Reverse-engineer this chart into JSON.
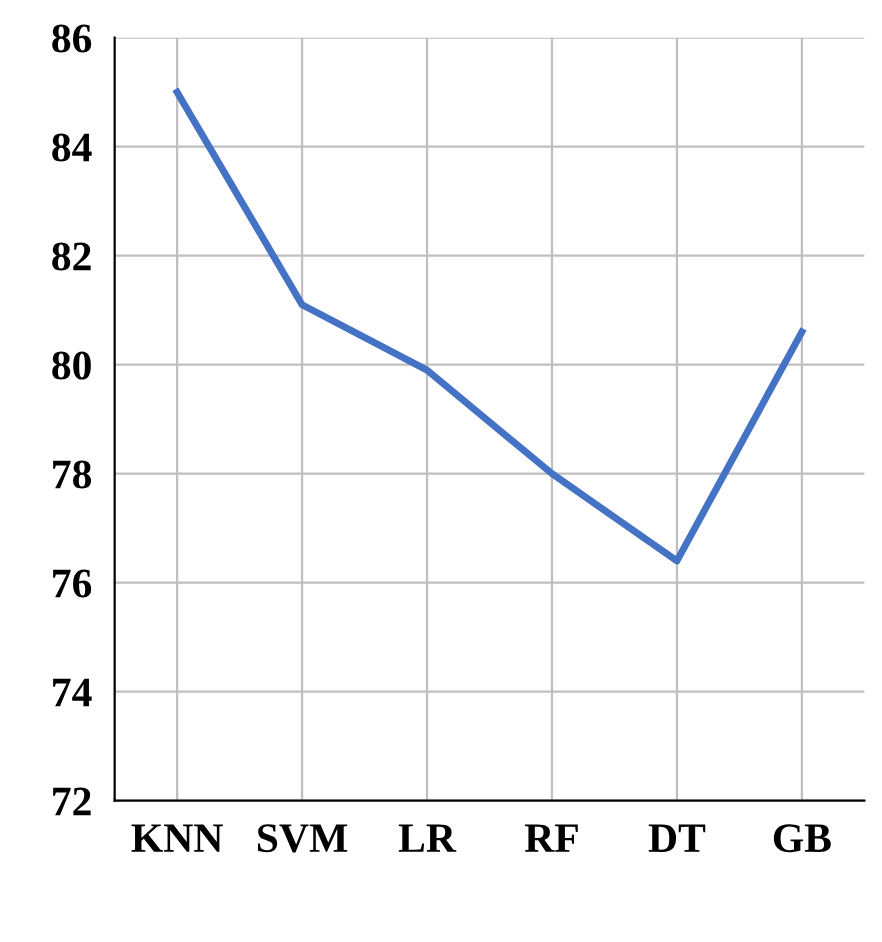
{
  "chart_data": {
    "type": "line",
    "categories": [
      "KNN",
      "SVM",
      "LR",
      "RF",
      "DT",
      "GB"
    ],
    "series": [
      {
        "color": "#4472c4",
        "values": [
          85.0,
          81.1,
          79.9,
          78.0,
          76.4,
          80.6
        ]
      }
    ],
    "ylim": [
      72,
      86
    ],
    "yticks": [
      72,
      74,
      76,
      78,
      80,
      82,
      84,
      86
    ],
    "grid": true
  }
}
